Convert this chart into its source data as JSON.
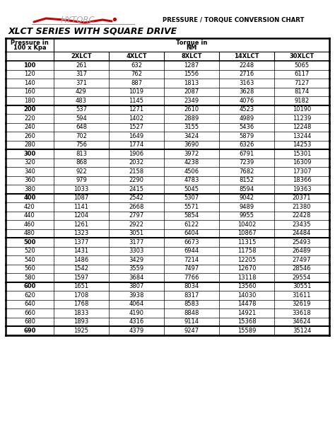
{
  "title_right": "PRESSURE / TORQUE CONVERSION CHART",
  "title_left": "XLCT SERIES WITH SQUARE DRIVE",
  "col_headers": [
    "2XLCT",
    "4XLCT",
    "8XLCT",
    "14XLCT",
    "30XLCT"
  ],
  "row_header1": "Pressure in",
  "row_header2": "100 x Kpa",
  "torque_label1": "Torque in",
  "torque_label2": "NM",
  "rows": [
    [
      100,
      261,
      632,
      1287,
      2248,
      5065
    ],
    [
      120,
      317,
      762,
      1556,
      2716,
      6117
    ],
    [
      140,
      371,
      887,
      1813,
      3163,
      7127
    ],
    [
      160,
      429,
      1019,
      2087,
      3628,
      8174
    ],
    [
      180,
      483,
      1145,
      2349,
      4076,
      9182
    ],
    [
      200,
      537,
      1271,
      2610,
      4523,
      10190
    ],
    [
      220,
      594,
      1402,
      2889,
      4989,
      11239
    ],
    [
      240,
      648,
      1527,
      3155,
      5436,
      12248
    ],
    [
      260,
      702,
      1649,
      3424,
      5879,
      13244
    ],
    [
      280,
      756,
      1774,
      3690,
      6326,
      14253
    ],
    [
      300,
      813,
      1906,
      3972,
      6791,
      15301
    ],
    [
      320,
      868,
      2032,
      4238,
      7239,
      16309
    ],
    [
      340,
      922,
      2158,
      4506,
      7682,
      17307
    ],
    [
      360,
      979,
      2290,
      4783,
      8152,
      18366
    ],
    [
      380,
      1033,
      2415,
      5045,
      8594,
      19363
    ],
    [
      400,
      1087,
      2542,
      5307,
      9042,
      20371
    ],
    [
      420,
      1141,
      2668,
      5571,
      9489,
      21380
    ],
    [
      440,
      1204,
      2797,
      5854,
      9955,
      22428
    ],
    [
      460,
      1261,
      2922,
      6122,
      10402,
      23435
    ],
    [
      480,
      1323,
      3051,
      6404,
      10867,
      24484
    ],
    [
      500,
      1377,
      3177,
      6673,
      11315,
      25493
    ],
    [
      520,
      1431,
      3303,
      6944,
      11758,
      26489
    ],
    [
      540,
      1486,
      3429,
      7214,
      12205,
      27497
    ],
    [
      560,
      1542,
      3559,
      7497,
      12670,
      28546
    ],
    [
      580,
      1597,
      3684,
      7766,
      13118,
      29554
    ],
    [
      600,
      1651,
      3807,
      8034,
      13560,
      30551
    ],
    [
      620,
      1708,
      3938,
      8317,
      14030,
      31611
    ],
    [
      640,
      1768,
      4064,
      8583,
      14478,
      32619
    ],
    [
      660,
      1833,
      4190,
      8848,
      14921,
      33618
    ],
    [
      680,
      1893,
      4316,
      9114,
      15368,
      34624
    ],
    [
      690,
      1925,
      4379,
      9247,
      15589,
      35124
    ]
  ],
  "group_end_rows": [
    4,
    9,
    14,
    19,
    24,
    29,
    30
  ],
  "bg_color": "#ffffff",
  "text_color": "#000000",
  "bold_pressure_rows": [
    0,
    5,
    10,
    15,
    20,
    25,
    30
  ]
}
